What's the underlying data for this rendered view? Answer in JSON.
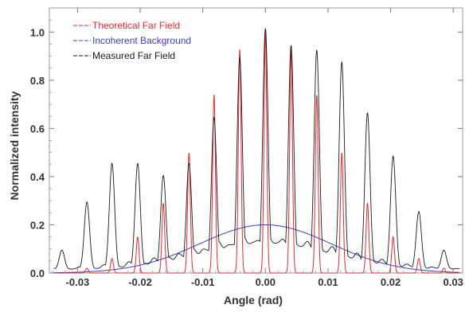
{
  "chart_data": {
    "type": "line",
    "title": "",
    "xlabel": "Angle (rad)",
    "ylabel": "Normalized  intensity",
    "xlim": [
      -0.0345,
      0.0315
    ],
    "ylim": [
      0.0,
      1.1
    ],
    "grid": false,
    "legend_position": "top-left",
    "x_ticks": [
      {
        "value": -0.03,
        "label": "-0.03"
      },
      {
        "value": -0.02,
        "label": "-0.02"
      },
      {
        "value": -0.01,
        "label": "-0.01"
      },
      {
        "value": 0.0,
        "label": "0.00"
      },
      {
        "value": 0.01,
        "label": "0.01"
      },
      {
        "value": 0.02,
        "label": "0.02"
      },
      {
        "value": 0.03,
        "label": "0.03"
      }
    ],
    "y_ticks": [
      {
        "value": 0.0,
        "label": "0.0"
      },
      {
        "value": 0.2,
        "label": "0.2"
      },
      {
        "value": 0.4,
        "label": "0.4"
      },
      {
        "value": 0.6,
        "label": "0.6"
      },
      {
        "value": 0.8,
        "label": "0.8"
      },
      {
        "value": 1.0,
        "label": "1.0"
      }
    ],
    "peak_positions": [
      -0.0325,
      -0.0285,
      -0.0245,
      -0.0204,
      -0.0163,
      -0.0122,
      -0.0082,
      -0.0041,
      0.0,
      0.0041,
      0.0082,
      0.0122,
      0.0163,
      0.0204,
      0.0245,
      0.0285,
      0.0325
    ],
    "series": [
      {
        "name": "Theoretical Far Field",
        "color": "#e8282d",
        "peak_values": [
          0.0,
          0.02,
          0.06,
          0.15,
          0.29,
          0.5,
          0.74,
          0.93,
          1.0,
          0.93,
          0.74,
          0.5,
          0.29,
          0.15,
          0.06,
          0.02,
          0.0
        ],
        "peak_width": 0.00022
      },
      {
        "name": "Incoherent Background",
        "color": "#3b3bd0",
        "amplitude": 0.2,
        "center": 0.0,
        "sigma": 0.0105
      },
      {
        "name": "Measured Far Field",
        "color": "#1a1a1a",
        "peak_values": [
          0.08,
          0.28,
          0.44,
          0.44,
          0.39,
          0.44,
          0.63,
          0.88,
          1.0,
          0.93,
          0.91,
          0.86,
          0.65,
          0.47,
          0.24,
          0.08,
          0.07
        ],
        "peak_width": 0.00042
      }
    ]
  }
}
